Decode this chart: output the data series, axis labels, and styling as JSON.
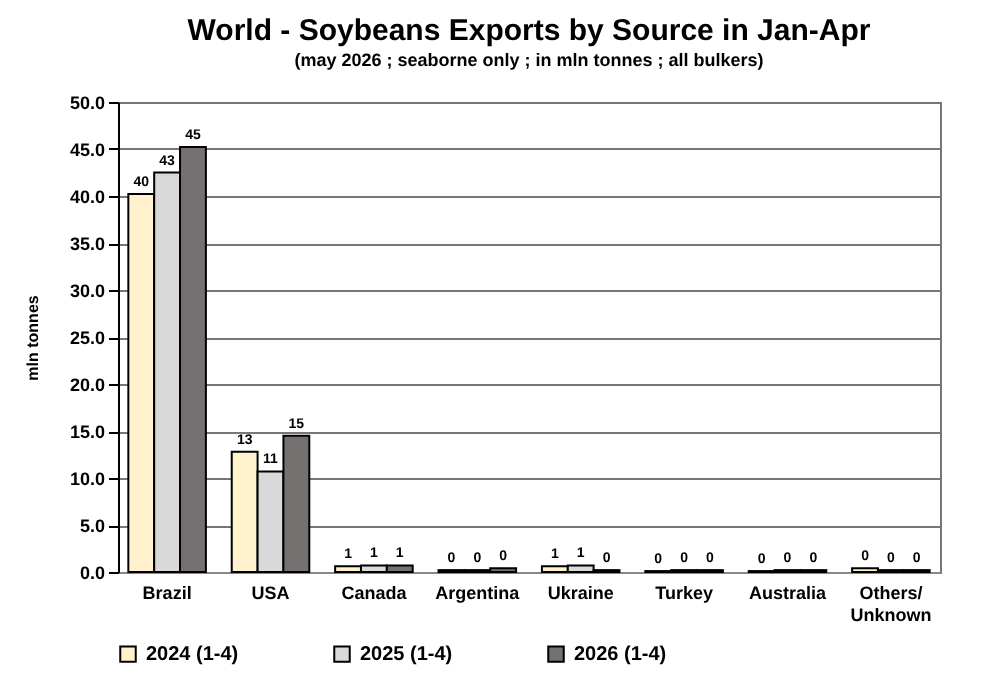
{
  "chart_data": {
    "type": "bar",
    "title": "World - Soybeans Exports by Source in Jan-Apr",
    "subtitle": "(may 2026 ; seaborne only ; in mln tonnes ; all bulkers)",
    "ylabel": "mln tonnes",
    "categories": [
      "Brazil",
      "USA",
      "Canada",
      "Argentina",
      "Ukraine",
      "Turkey",
      "Australia",
      "Others/\nUnknown"
    ],
    "series": [
      {
        "name": "2024 (1-4)",
        "color": "#fff2cc",
        "values": [
          40.2,
          12.8,
          0.6,
          0.2,
          0.6,
          0.1,
          0.1,
          0.4
        ],
        "value_labels": [
          "40",
          "13",
          "1",
          "0",
          "1",
          "0",
          "0",
          "0"
        ]
      },
      {
        "name": "2025 (1-4)",
        "color": "#d9d9d9",
        "values": [
          42.5,
          10.7,
          0.7,
          0.2,
          0.7,
          0.2,
          0.2,
          0.2
        ],
        "value_labels": [
          "43",
          "11",
          "1",
          "0",
          "1",
          "0",
          "0",
          "0"
        ]
      },
      {
        "name": "2026 (1-4)",
        "color": "#767171",
        "values": [
          45.2,
          14.5,
          0.7,
          0.4,
          0.2,
          0.2,
          0.2,
          0.2
        ],
        "value_labels": [
          "45",
          "15",
          "1",
          "0",
          "0",
          "0",
          "0",
          "0"
        ]
      }
    ],
    "ylim": [
      0,
      50
    ],
    "yticks": [
      {
        "value": 0,
        "label": "0.0"
      },
      {
        "value": 5,
        "label": "5.0"
      },
      {
        "value": 10,
        "label": "10.0"
      },
      {
        "value": 15,
        "label": "15.0"
      },
      {
        "value": 20,
        "label": "20.0"
      },
      {
        "value": 25,
        "label": "25.0"
      },
      {
        "value": 30,
        "label": "30.0"
      },
      {
        "value": 35,
        "label": "35.0"
      },
      {
        "value": 40,
        "label": "40.0"
      },
      {
        "value": 45,
        "label": "45.0"
      },
      {
        "value": 50,
        "label": "50.0"
      }
    ],
    "grid": "y",
    "legend": "bottom"
  }
}
